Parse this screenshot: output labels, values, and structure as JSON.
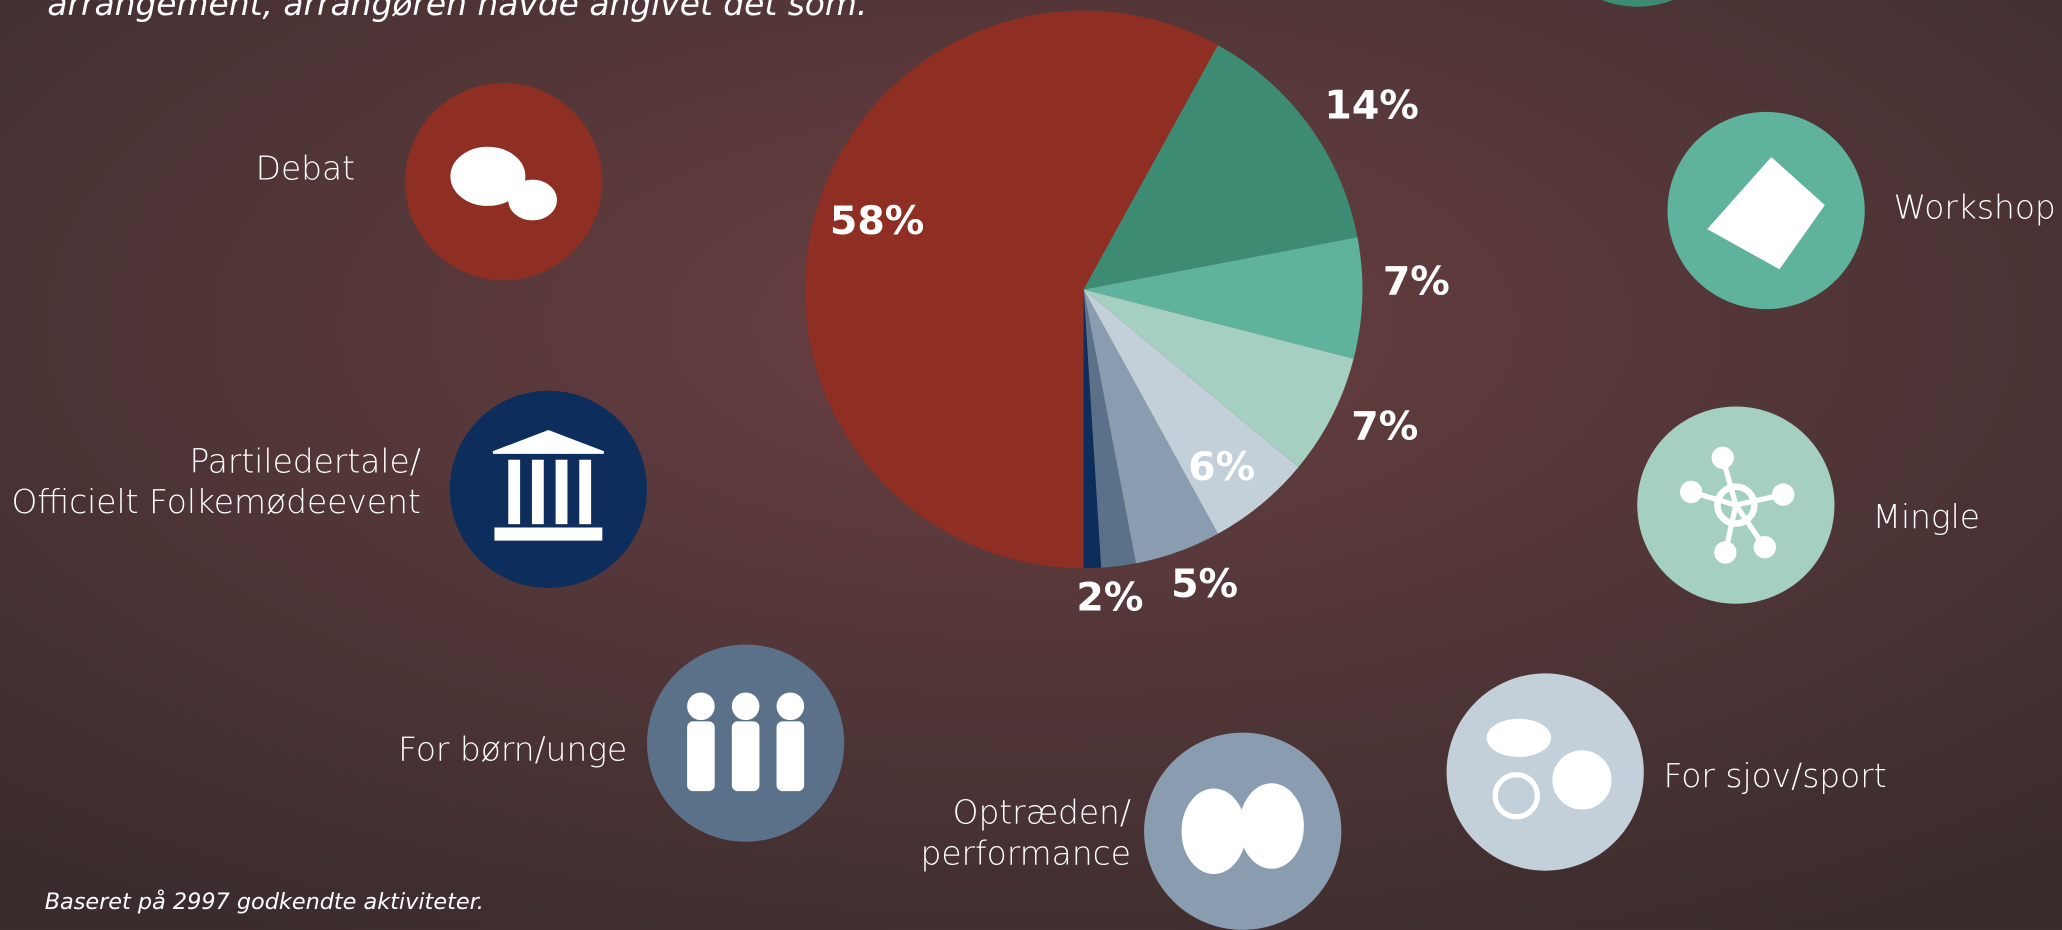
{
  "chart_data": {
    "type": "pie",
    "title": "arrangement, arrangøren havde angivet det som.",
    "footnote": "Baseret på 2997 godkendte aktiviteter.",
    "categories": [
      "Debat",
      null,
      "Workshop",
      "Mingle",
      "For sjov/sport",
      "Optræden/\nperformance",
      "For børn/unge",
      "Partiledertale/\nOfficielt Folkemødeevent"
    ],
    "values": [
      58,
      14,
      7,
      7,
      6,
      5,
      2,
      1
    ],
    "value_labels": [
      "58%",
      "14%",
      "7%",
      "7%",
      "6%",
      "5%",
      "2%",
      null
    ],
    "colors": [
      "#8f2e22",
      "#3e8b74",
      "#5fb29c",
      "#a5cfc0",
      "#c3cfd9",
      "#8a9db0",
      "#5a7189",
      "#0d2d5c"
    ]
  }
}
